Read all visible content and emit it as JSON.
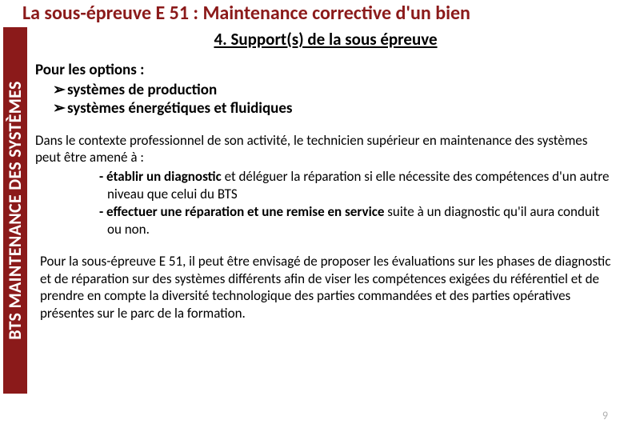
{
  "colors": {
    "brand_red": "#8b1a1a",
    "page_number": "#b0b0b0",
    "background": "#ffffff",
    "text": "#000000"
  },
  "title": "La sous-épreuve E 51 : Maintenance corrective d'un bien",
  "sidebar_label": "BTS MAINTENANCE DES SYSTÈMES",
  "section_title": "4. Support(s) de la sous épreuve",
  "options": {
    "intro": "Pour les options :",
    "items": [
      "systèmes de production",
      "systèmes énergétiques et fluidiques"
    ],
    "bullet_glyph": "➢"
  },
  "context": {
    "lead": "Dans le contexte professionnel de son activité, le technicien supérieur en maintenance des systèmes peut être amené à :",
    "items": [
      {
        "bold": "- établir un diagnostic",
        "rest": " et déléguer la réparation si elle nécessite des compétences d'un autre niveau que celui du BTS"
      },
      {
        "bold": "- effectuer une réparation et une remise en service",
        "rest": " suite à un diagnostic qu'il aura conduit ou non."
      }
    ]
  },
  "closing": "Pour la sous-épreuve E 51, il peut être envisagé de proposer les évaluations sur les phases de diagnostic et de réparation sur des systèmes différents afin de viser les compétences exigées du référentiel et de prendre en compte la diversité technologique des parties commandées et des parties opératives présentes sur le parc de la formation.",
  "page_number": "9"
}
